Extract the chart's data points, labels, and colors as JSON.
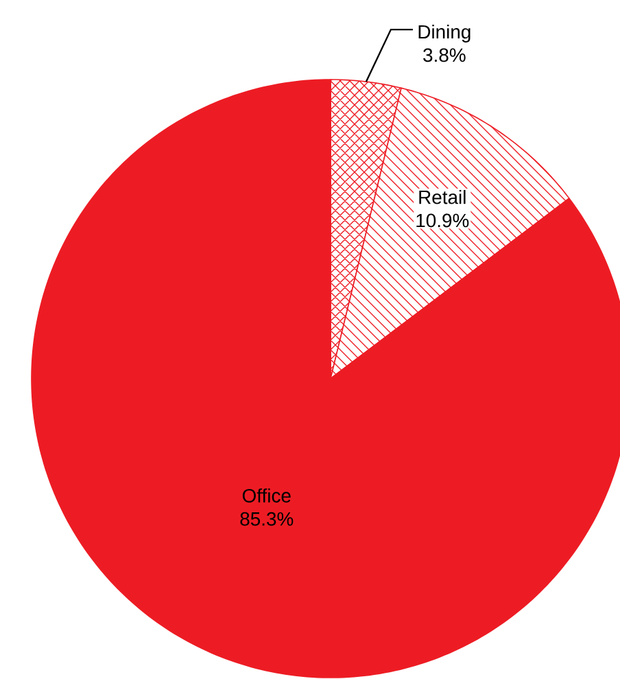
{
  "chart_data": {
    "type": "pie",
    "categories": [
      "Dining",
      "Retail",
      "Office"
    ],
    "values": [
      3.8,
      10.9,
      85.3
    ],
    "colors": [
      "#ed1c24",
      "#ed1c24",
      "#ed1c24"
    ],
    "value_labels": [
      "3.8%",
      "10.9%",
      "85.3%"
    ]
  }
}
